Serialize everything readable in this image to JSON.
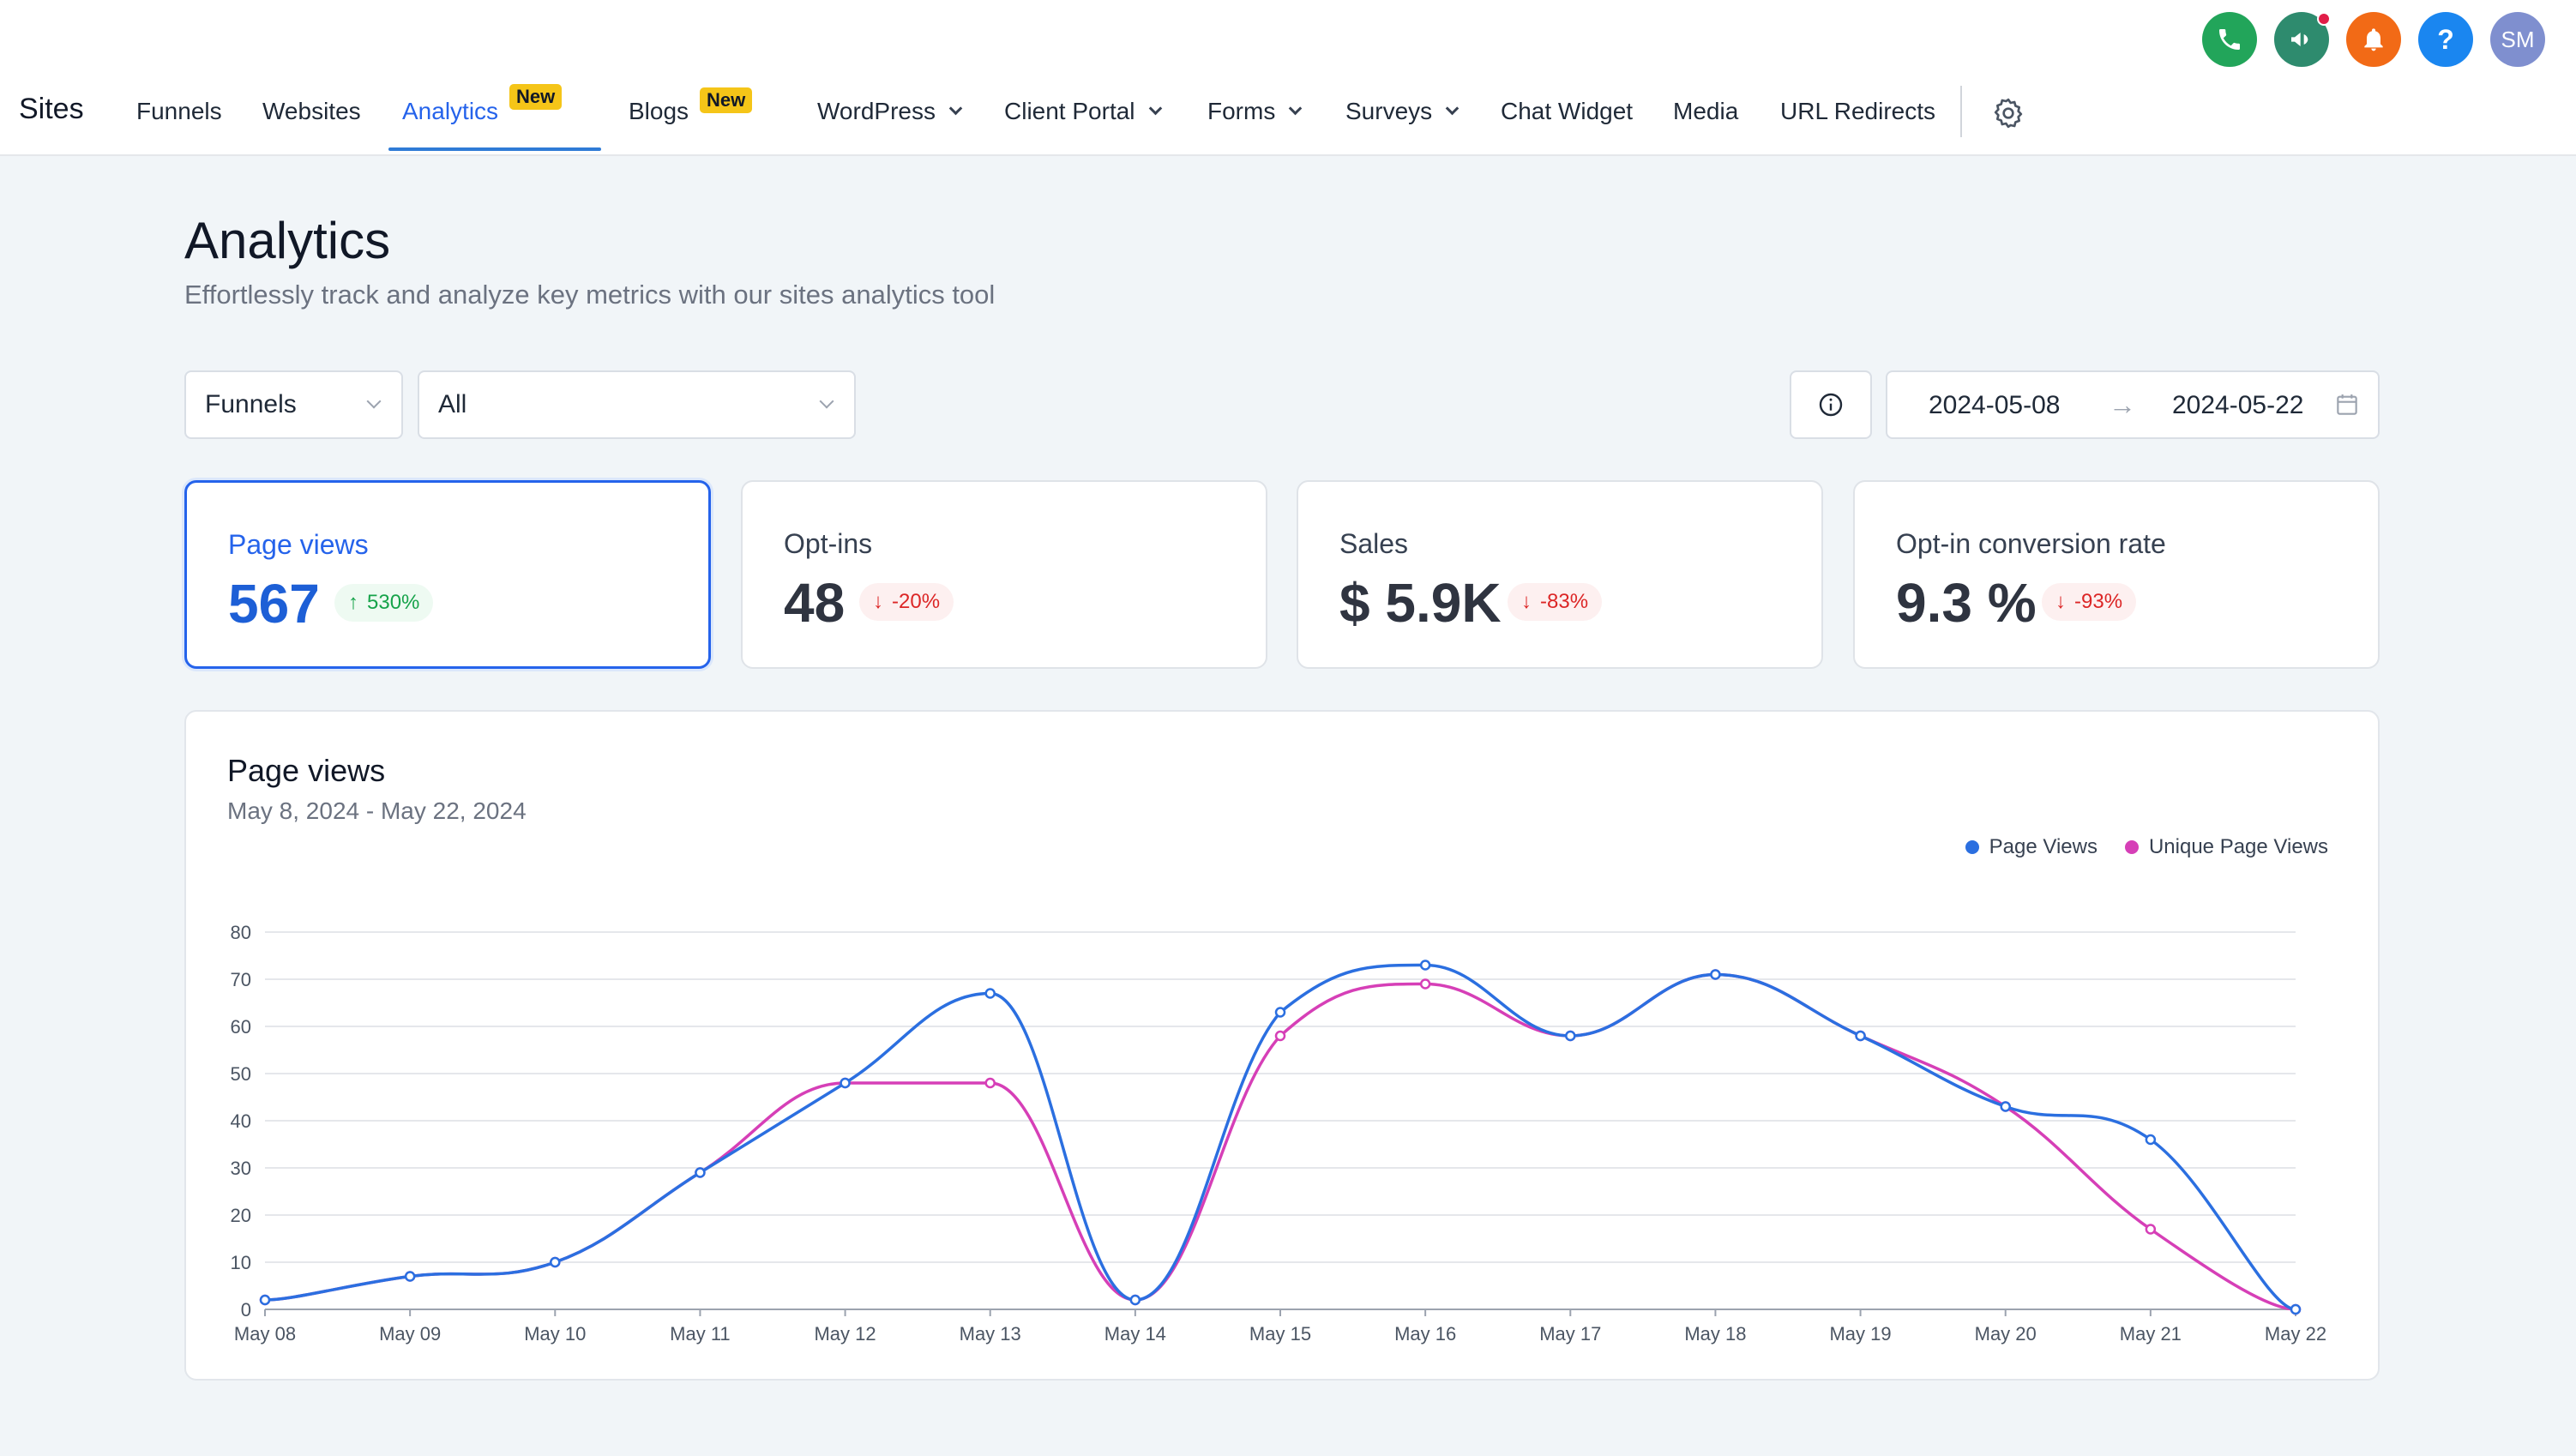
{
  "topbar": {
    "brand": "Sites",
    "nav": [
      {
        "label": "Funnels"
      },
      {
        "label": "Websites"
      },
      {
        "label": "Analytics",
        "badge": "New",
        "active": true
      },
      {
        "label": "Blogs",
        "badge": "New"
      },
      {
        "label": "WordPress",
        "dropdown": true
      },
      {
        "label": "Client Portal",
        "dropdown": true
      },
      {
        "label": "Forms",
        "dropdown": true
      },
      {
        "label": "Surveys",
        "dropdown": true
      },
      {
        "label": "Chat Widget"
      },
      {
        "label": "Media"
      },
      {
        "label": "URL Redirects"
      }
    ],
    "icons": {
      "phone": {
        "icon": "phone-icon",
        "color": "#22a55a"
      },
      "announcements": {
        "icon": "megaphone-icon",
        "color": "#2e8b6e"
      },
      "notifications": {
        "icon": "bell-icon",
        "color": "#f26a16"
      },
      "help": {
        "icon": "question-icon",
        "color": "#1a86f0",
        "text": "?"
      },
      "avatar": {
        "initials": "SM",
        "color": "#7f8fcf"
      }
    }
  },
  "page": {
    "title": "Analytics",
    "subtitle": "Effortlessly track and analyze key metrics with our sites analytics tool"
  },
  "filters": {
    "type": "Funnels",
    "scope": "All",
    "date_start": "2024-05-08",
    "date_end": "2024-05-22"
  },
  "metrics": [
    {
      "label": "Page views",
      "value": "567",
      "change": "530%",
      "direction": "up",
      "active": true
    },
    {
      "label": "Opt-ins",
      "value": "48",
      "change": "-20%",
      "direction": "down"
    },
    {
      "label": "Sales",
      "value": "$ 5.9K",
      "change": "-83%",
      "direction": "down"
    },
    {
      "label": "Opt-in conversion rate",
      "value": "9.3 %",
      "change": "-93%",
      "direction": "down"
    }
  ],
  "chart": {
    "title": "Page views",
    "subtitle": "May 8, 2024 - May 22, 2024"
  },
  "chart_data": {
    "type": "line",
    "x": [
      "May 08",
      "May 09",
      "May 10",
      "May 11",
      "May 12",
      "May 13",
      "May 14",
      "May 15",
      "May 16",
      "May 17",
      "May 18",
      "May 19",
      "May 20",
      "May 21",
      "May 22"
    ],
    "ylim": [
      0,
      80
    ],
    "yticks": [
      0,
      10,
      20,
      30,
      40,
      50,
      60,
      70,
      80
    ],
    "grid": true,
    "legend_position": "top-right",
    "series": [
      {
        "name": "Page Views",
        "color": "#2b6fe0",
        "values": [
          2,
          7,
          10,
          29,
          48,
          67,
          2,
          63,
          73,
          58,
          71,
          58,
          43,
          36,
          0
        ]
      },
      {
        "name": "Unique Page Views",
        "color": "#d63fb7",
        "values": [
          2,
          7,
          10,
          29,
          48,
          48,
          2,
          58,
          69,
          58,
          71,
          58,
          43,
          17,
          0
        ]
      }
    ]
  }
}
